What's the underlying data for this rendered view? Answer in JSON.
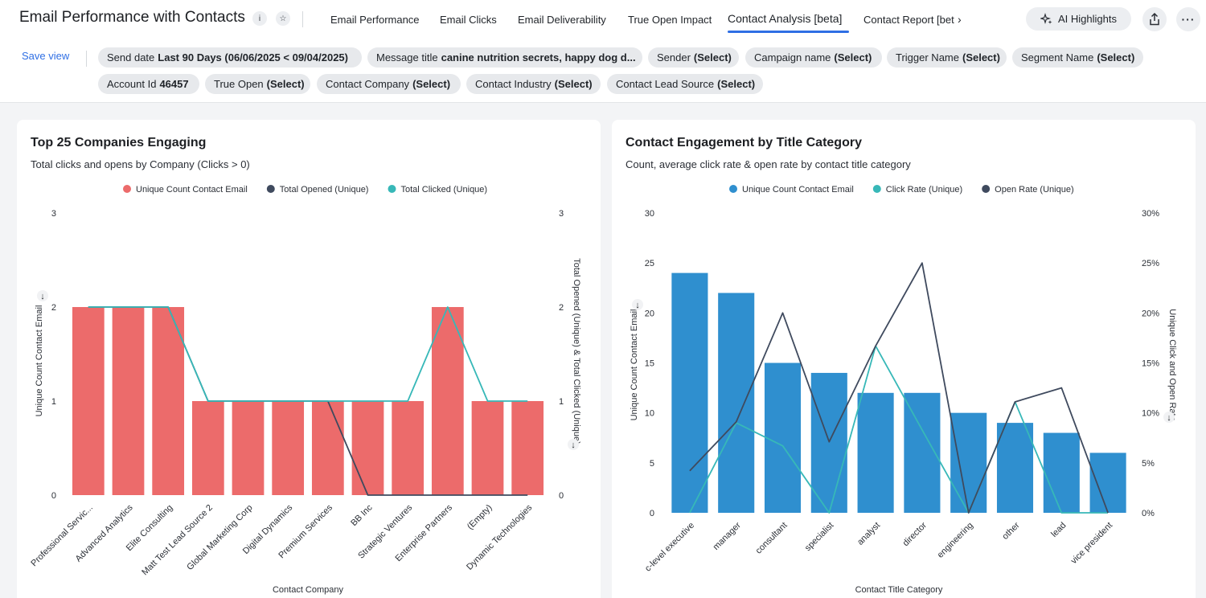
{
  "header": {
    "title": "Email Performance with Contacts",
    "tabs": [
      {
        "label": "Email Performance"
      },
      {
        "label": "Email Clicks"
      },
      {
        "label": "Email Deliverability"
      },
      {
        "label": "True Open Impact"
      },
      {
        "label": "Contact Analysis [beta]",
        "active": true
      },
      {
        "label": "Contact Report [bet"
      }
    ],
    "ai_label": "AI Highlights"
  },
  "filters": {
    "save_view": "Save view",
    "chips": [
      {
        "key": "Send date",
        "value": "Last 90 Days (06/06/2025 < 09/04/2025)"
      },
      {
        "key": "Message title",
        "value": "canine nutrition secrets, happy dog d..."
      },
      {
        "key": "Sender",
        "value": "(Select)"
      },
      {
        "key": "Campaign name",
        "value": "(Select)"
      },
      {
        "key": "Trigger Name",
        "value": "(Select)"
      },
      {
        "key": "Segment Name",
        "value": "(Select)"
      },
      {
        "key": "Account Id",
        "value": "46457"
      },
      {
        "key": "True Open",
        "value": "(Select)"
      },
      {
        "key": "Contact Company",
        "value": "(Select)"
      },
      {
        "key": "Contact Industry",
        "value": "(Select)"
      },
      {
        "key": "Contact Lead Source",
        "value": "(Select)"
      }
    ]
  },
  "cards": {
    "left": {
      "title": "Top 25 Companies Engaging",
      "subtitle": "Total clicks and opens by Company (Clicks > 0)"
    },
    "right": {
      "title": "Contact Engagement by Title Category",
      "subtitle": "Count, average click rate & open rate by contact title category"
    }
  },
  "chart_data": [
    {
      "type": "bar",
      "title": "Top 25 Companies Engaging",
      "subtitle": "Total clicks and opens by Company (Clicks > 0)",
      "xlabel": "Contact Company",
      "ylabel": "Unique Count Contact Email",
      "y2label": "Total Opened (Unique) & Total Clicked (Unique)",
      "ylim": [
        0,
        3
      ],
      "y2lim": [
        0,
        3
      ],
      "yticks": [
        "0",
        "1",
        "2",
        "3"
      ],
      "y2ticks": [
        "0",
        "1",
        "2",
        "3"
      ],
      "legend_position": "top-center",
      "categories": [
        "Professional Servic...",
        "Advanced Analytics",
        "Elite Consulting",
        "Matt Test Lead Source 2",
        "Global Marketing Corp",
        "Digital Dynamics",
        "Premium Services",
        "BB Inc",
        "Strategic Ventures",
        "Enterprise Partners",
        "(Empty)",
        "Dynamic Technologies"
      ],
      "series": [
        {
          "name": "Unique Count Contact Email",
          "type": "bar",
          "axis": "left",
          "color": "#ec6b6b",
          "values": [
            2,
            2,
            2,
            1,
            1,
            1,
            1,
            1,
            1,
            2,
            1,
            1
          ]
        },
        {
          "name": "Total Opened (Unique)",
          "type": "line",
          "axis": "right",
          "color": "#3f4a5e",
          "values": [
            2,
            2,
            2,
            1,
            1,
            1,
            1,
            0,
            0,
            0,
            0,
            0
          ]
        },
        {
          "name": "Total Clicked (Unique)",
          "type": "line",
          "axis": "right",
          "color": "#37b8b8",
          "values": [
            2,
            2,
            2,
            1,
            1,
            1,
            1,
            1,
            1,
            2,
            1,
            1
          ]
        }
      ]
    },
    {
      "type": "bar",
      "title": "Contact Engagement by Title Category",
      "subtitle": "Count, average click rate & open rate by contact title category",
      "xlabel": "Contact Title Category",
      "ylabel": "Unique Count Contact Email",
      "y2label": "Unique Click and Open Rate",
      "ylim": [
        0,
        30
      ],
      "y2lim": [
        0,
        30
      ],
      "yticks": [
        "0",
        "5",
        "10",
        "15",
        "20",
        "25",
        "30"
      ],
      "y2ticks": [
        "0%",
        "5%",
        "10%",
        "15%",
        "20%",
        "25%",
        "30%"
      ],
      "legend_position": "top-center",
      "categories": [
        "c-level executive",
        "manager",
        "consultant",
        "specialist",
        "analyst",
        "director",
        "engineering",
        "other",
        "lead",
        "vice president"
      ],
      "series": [
        {
          "name": "Unique Count Contact Email",
          "type": "bar",
          "axis": "left",
          "color": "#2f8fcf",
          "values": [
            24,
            22,
            15,
            14,
            12,
            12,
            10,
            9,
            8,
            6
          ]
        },
        {
          "name": "Click Rate (Unique)",
          "type": "line",
          "axis": "right",
          "color": "#37b8b8",
          "values": [
            0,
            9,
            6.7,
            0,
            16.7,
            8.3,
            0,
            11.1,
            0,
            0
          ]
        },
        {
          "name": "Open Rate (Unique)",
          "type": "line",
          "axis": "right",
          "color": "#3f4a5e",
          "values": [
            4.2,
            9.1,
            20,
            7.1,
            16.7,
            25,
            0,
            11.1,
            12.5,
            0
          ]
        }
      ]
    }
  ]
}
